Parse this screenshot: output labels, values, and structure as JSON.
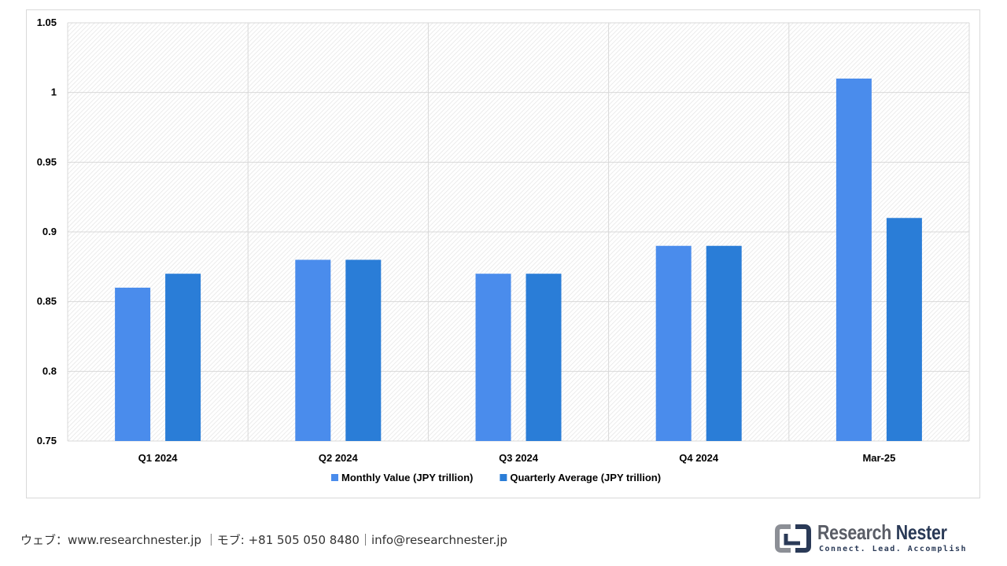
{
  "chart_data": {
    "type": "bar",
    "categories": [
      "Q1 2024",
      "Q2 2024",
      "Q3 2024",
      "Q4 2024",
      "Mar-25"
    ],
    "series": [
      {
        "name": "Monthly Value (JPY trillion)",
        "values": [
          0.86,
          0.88,
          0.87,
          0.89,
          1.01
        ],
        "color": "#4a8cec"
      },
      {
        "name": "Quarterly Average (JPY trillion)",
        "values": [
          0.87,
          0.88,
          0.87,
          0.89,
          0.91
        ],
        "color": "#2a7dd7"
      }
    ],
    "ylim": [
      0.75,
      1.05
    ],
    "yticks": [
      0.75,
      0.8,
      0.85,
      0.9,
      0.95,
      1,
      1.05
    ],
    "ytick_labels": [
      "0.75",
      "0.8",
      "0.85",
      "0.9",
      "0.95",
      "1",
      "1.05"
    ],
    "title": "",
    "xlabel": "",
    "ylabel": "",
    "grid": true,
    "legend_position": "bottom"
  },
  "footer": {
    "contact": "ウェブ：www.researchnester.jp ｜モブ: +81 505 050 8480｜info@researchnester.jp"
  },
  "logo": {
    "name_part1": "Research",
    "name_part2": "Nester",
    "tagline": "Connect. Lead. Accomplish"
  }
}
